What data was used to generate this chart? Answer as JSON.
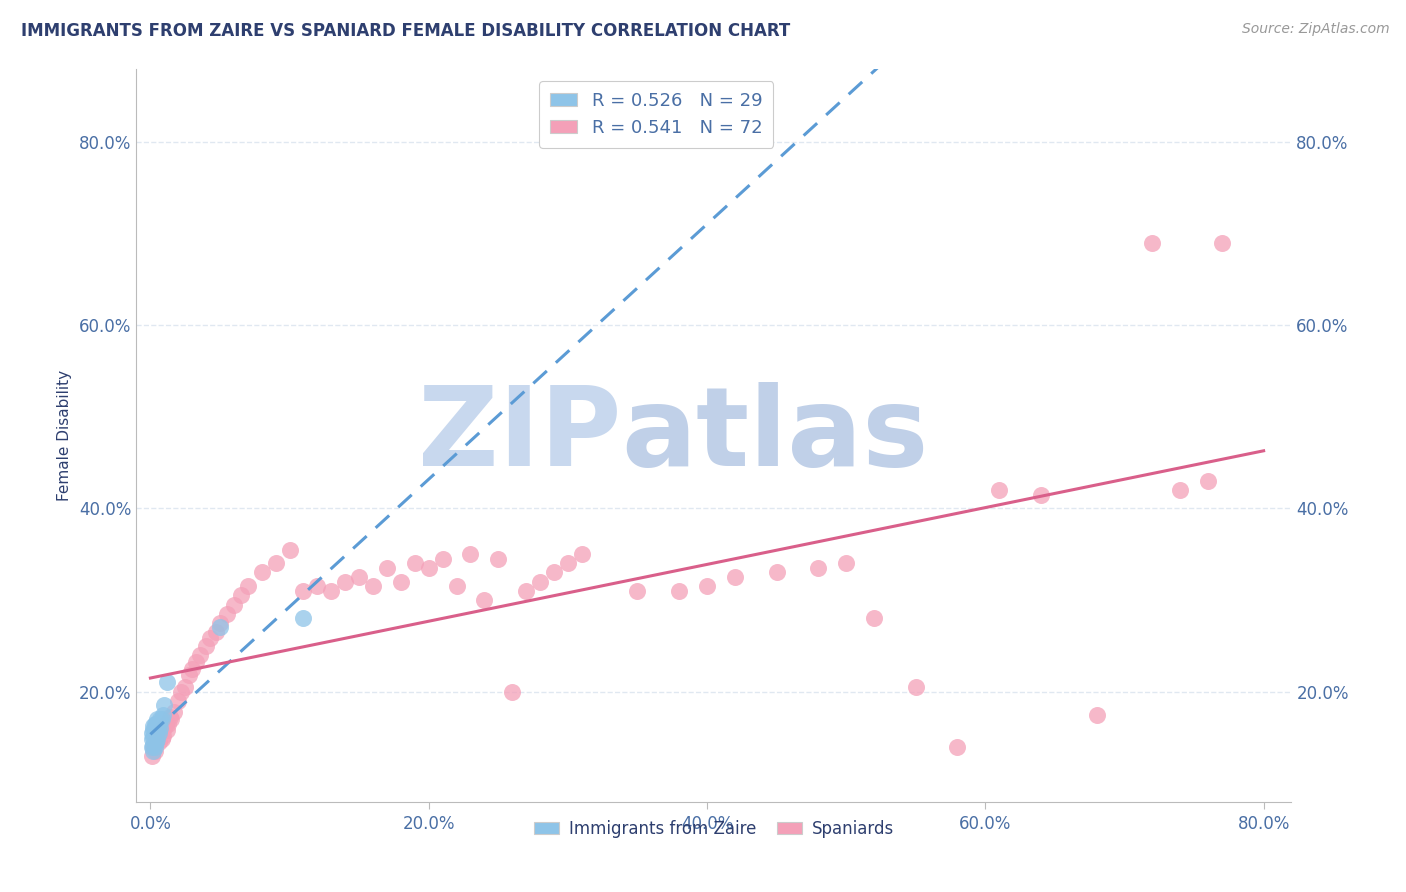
{
  "title": "IMMIGRANTS FROM ZAIRE VS SPANIARD FEMALE DISABILITY CORRELATION CHART",
  "source_text": "Source: ZipAtlas.com",
  "ylabel": "Female Disability",
  "xlim": [
    -0.01,
    0.82
  ],
  "ylim": [
    0.08,
    0.88
  ],
  "xticks": [
    0.0,
    0.2,
    0.4,
    0.6,
    0.8
  ],
  "yticks": [
    0.2,
    0.4,
    0.6,
    0.8
  ],
  "xticklabels": [
    "0.0%",
    "20.0%",
    "40.0%",
    "60.0%",
    "80.0%"
  ],
  "yticklabels": [
    "20.0%",
    "40.0%",
    "60.0%",
    "80.0%"
  ],
  "watermark_zip": "ZIP",
  "watermark_atlas": "atlas",
  "legend_r1": "R = 0.526",
  "legend_n1": "N = 29",
  "legend_r2": "R = 0.541",
  "legend_n2": "N = 72",
  "color_blue": "#8ec4e8",
  "color_pink": "#f4a0b8",
  "color_blue_line": "#5b9bd5",
  "color_pink_line": "#d95f8a",
  "color_title": "#2e3f6f",
  "color_axis_labels": "#4a6fa5",
  "color_source": "#999999",
  "color_grid": "#dde6f0",
  "color_watermark_zip": "#c8d8ee",
  "color_watermark_atlas": "#c0d0e8",
  "blue_x": [
    0.001,
    0.001,
    0.001,
    0.002,
    0.002,
    0.002,
    0.002,
    0.002,
    0.003,
    0.003,
    0.003,
    0.003,
    0.004,
    0.004,
    0.004,
    0.005,
    0.005,
    0.005,
    0.005,
    0.006,
    0.006,
    0.007,
    0.007,
    0.008,
    0.009,
    0.01,
    0.012,
    0.05,
    0.11
  ],
  "blue_y": [
    0.14,
    0.148,
    0.155,
    0.135,
    0.142,
    0.15,
    0.158,
    0.162,
    0.14,
    0.148,
    0.155,
    0.165,
    0.145,
    0.155,
    0.165,
    0.148,
    0.158,
    0.162,
    0.17,
    0.155,
    0.165,
    0.16,
    0.17,
    0.17,
    0.175,
    0.185,
    0.21,
    0.27,
    0.28
  ],
  "pink_x": [
    0.001,
    0.002,
    0.003,
    0.004,
    0.005,
    0.006,
    0.007,
    0.008,
    0.009,
    0.01,
    0.011,
    0.012,
    0.013,
    0.014,
    0.015,
    0.017,
    0.02,
    0.022,
    0.025,
    0.028,
    0.03,
    0.033,
    0.036,
    0.04,
    0.043,
    0.047,
    0.05,
    0.055,
    0.06,
    0.065,
    0.07,
    0.08,
    0.09,
    0.1,
    0.11,
    0.12,
    0.13,
    0.14,
    0.15,
    0.16,
    0.17,
    0.18,
    0.19,
    0.2,
    0.21,
    0.22,
    0.23,
    0.24,
    0.25,
    0.26,
    0.27,
    0.28,
    0.29,
    0.3,
    0.31,
    0.35,
    0.38,
    0.4,
    0.42,
    0.45,
    0.48,
    0.5,
    0.52,
    0.55,
    0.58,
    0.61,
    0.64,
    0.68,
    0.72,
    0.74,
    0.76,
    0.77
  ],
  "pink_y": [
    0.13,
    0.14,
    0.135,
    0.148,
    0.15,
    0.145,
    0.155,
    0.148,
    0.152,
    0.16,
    0.165,
    0.158,
    0.165,
    0.172,
    0.17,
    0.178,
    0.19,
    0.2,
    0.205,
    0.218,
    0.225,
    0.232,
    0.24,
    0.25,
    0.258,
    0.265,
    0.275,
    0.285,
    0.295,
    0.305,
    0.315,
    0.33,
    0.34,
    0.355,
    0.31,
    0.315,
    0.31,
    0.32,
    0.325,
    0.315,
    0.335,
    0.32,
    0.34,
    0.335,
    0.345,
    0.315,
    0.35,
    0.3,
    0.345,
    0.2,
    0.31,
    0.32,
    0.33,
    0.34,
    0.35,
    0.31,
    0.31,
    0.315,
    0.325,
    0.33,
    0.335,
    0.34,
    0.28,
    0.205,
    0.14,
    0.42,
    0.415,
    0.175,
    0.69,
    0.42,
    0.43,
    0.69
  ]
}
